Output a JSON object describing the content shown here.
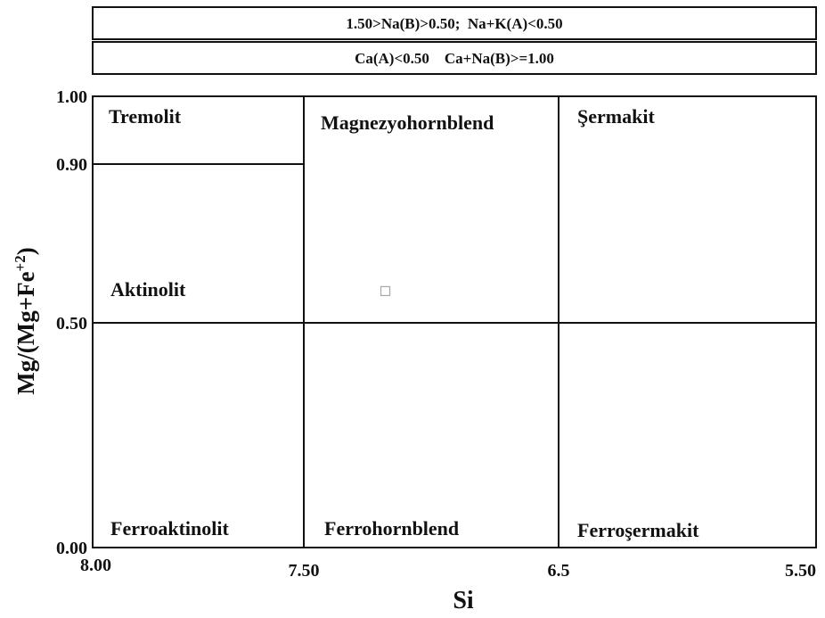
{
  "chart_data": {
    "type": "scatter",
    "header": [
      "1.50>Na(B)>0.50;  Na+K(A)<0.50",
      "Ca(A)<0.50    Ca+Na(B)>=1.00"
    ],
    "fields": [
      "Tremolit",
      "Magnezyohornblend",
      "Şermakit",
      "Aktinolit",
      "Ferroaktinolit",
      "Ferrohornblend",
      "Ferroşermakit"
    ],
    "xlabel": "Si",
    "ylabel": {
      "main": "Mg/(Mg+Fe",
      "sup": "+2",
      "end": ")"
    },
    "xlim": [
      8,
      5.5
    ],
    "xticks": [
      {
        "value": 8,
        "label": "8.00"
      },
      {
        "value": 7.5,
        "label": "7.50"
      },
      6.5,
      {
        "value": 5.5,
        "label": "5.50"
      }
    ],
    "ylim": [
      0,
      1
    ],
    "yticks": [
      {
        "value": 1,
        "label": "1.00"
      },
      {
        "value": 0.9,
        "label": "0.90"
      },
      {
        "value": 0.5,
        "label": "0.50"
      },
      {
        "value": 0,
        "label": "0.00"
      }
    ],
    "x": [
      7.18
    ],
    "values": [
      0.58
    ],
    "color": "#a8a8a8"
  }
}
